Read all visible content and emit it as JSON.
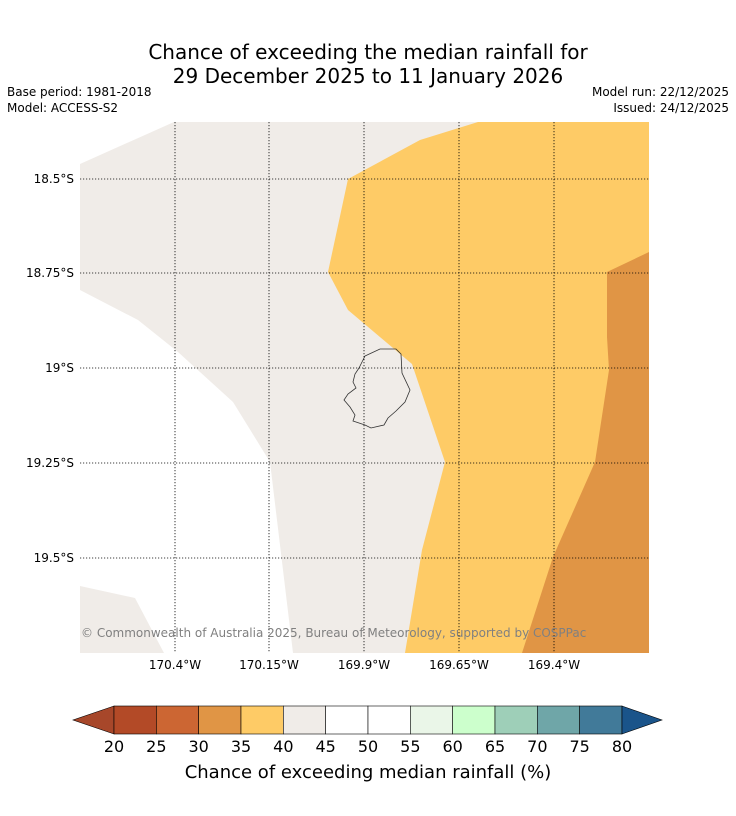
{
  "title_line1": "Chance of exceeding the median rainfall for",
  "title_line2": "29 December 2025 to 11 January 2026",
  "base_period": "Base period: 1981-2018",
  "model": "Model: ACCESS-S2",
  "model_run": "Model run: 22/12/2025",
  "issued": "Issued: 24/12/2025",
  "lat_labels": [
    "18.5°S",
    "18.75°S",
    "19°S",
    "19.25°S",
    "19.5°S"
  ],
  "lon_labels": [
    "170.4°W",
    "170.15°W",
    "169.9°W",
    "169.65°W",
    "169.4°W"
  ],
  "copyright": "© Commonwealth of Australia 2025, Bureau of Meteorology, supported by COSPPac",
  "legend": {
    "label": "Chance of exceeding median rainfall (%)",
    "ticks": [
      "20",
      "25",
      "30",
      "35",
      "40",
      "45",
      "50",
      "55",
      "60",
      "65",
      "70",
      "75",
      "80"
    ],
    "colors": [
      "#a7472a",
      "#b34a27",
      "#cc6633",
      "#e09545",
      "#fecb66",
      "#f0ece8",
      "#ffffff",
      "#ffffff",
      "#eaf6e8",
      "#ccffcc",
      "#9ecfb8",
      "#6fa6a8",
      "#417a99",
      "#1a548a"
    ]
  },
  "region_categories": {
    "neutral": "40-45%",
    "light_orange": "35-40%",
    "orange": "30-35%"
  }
}
